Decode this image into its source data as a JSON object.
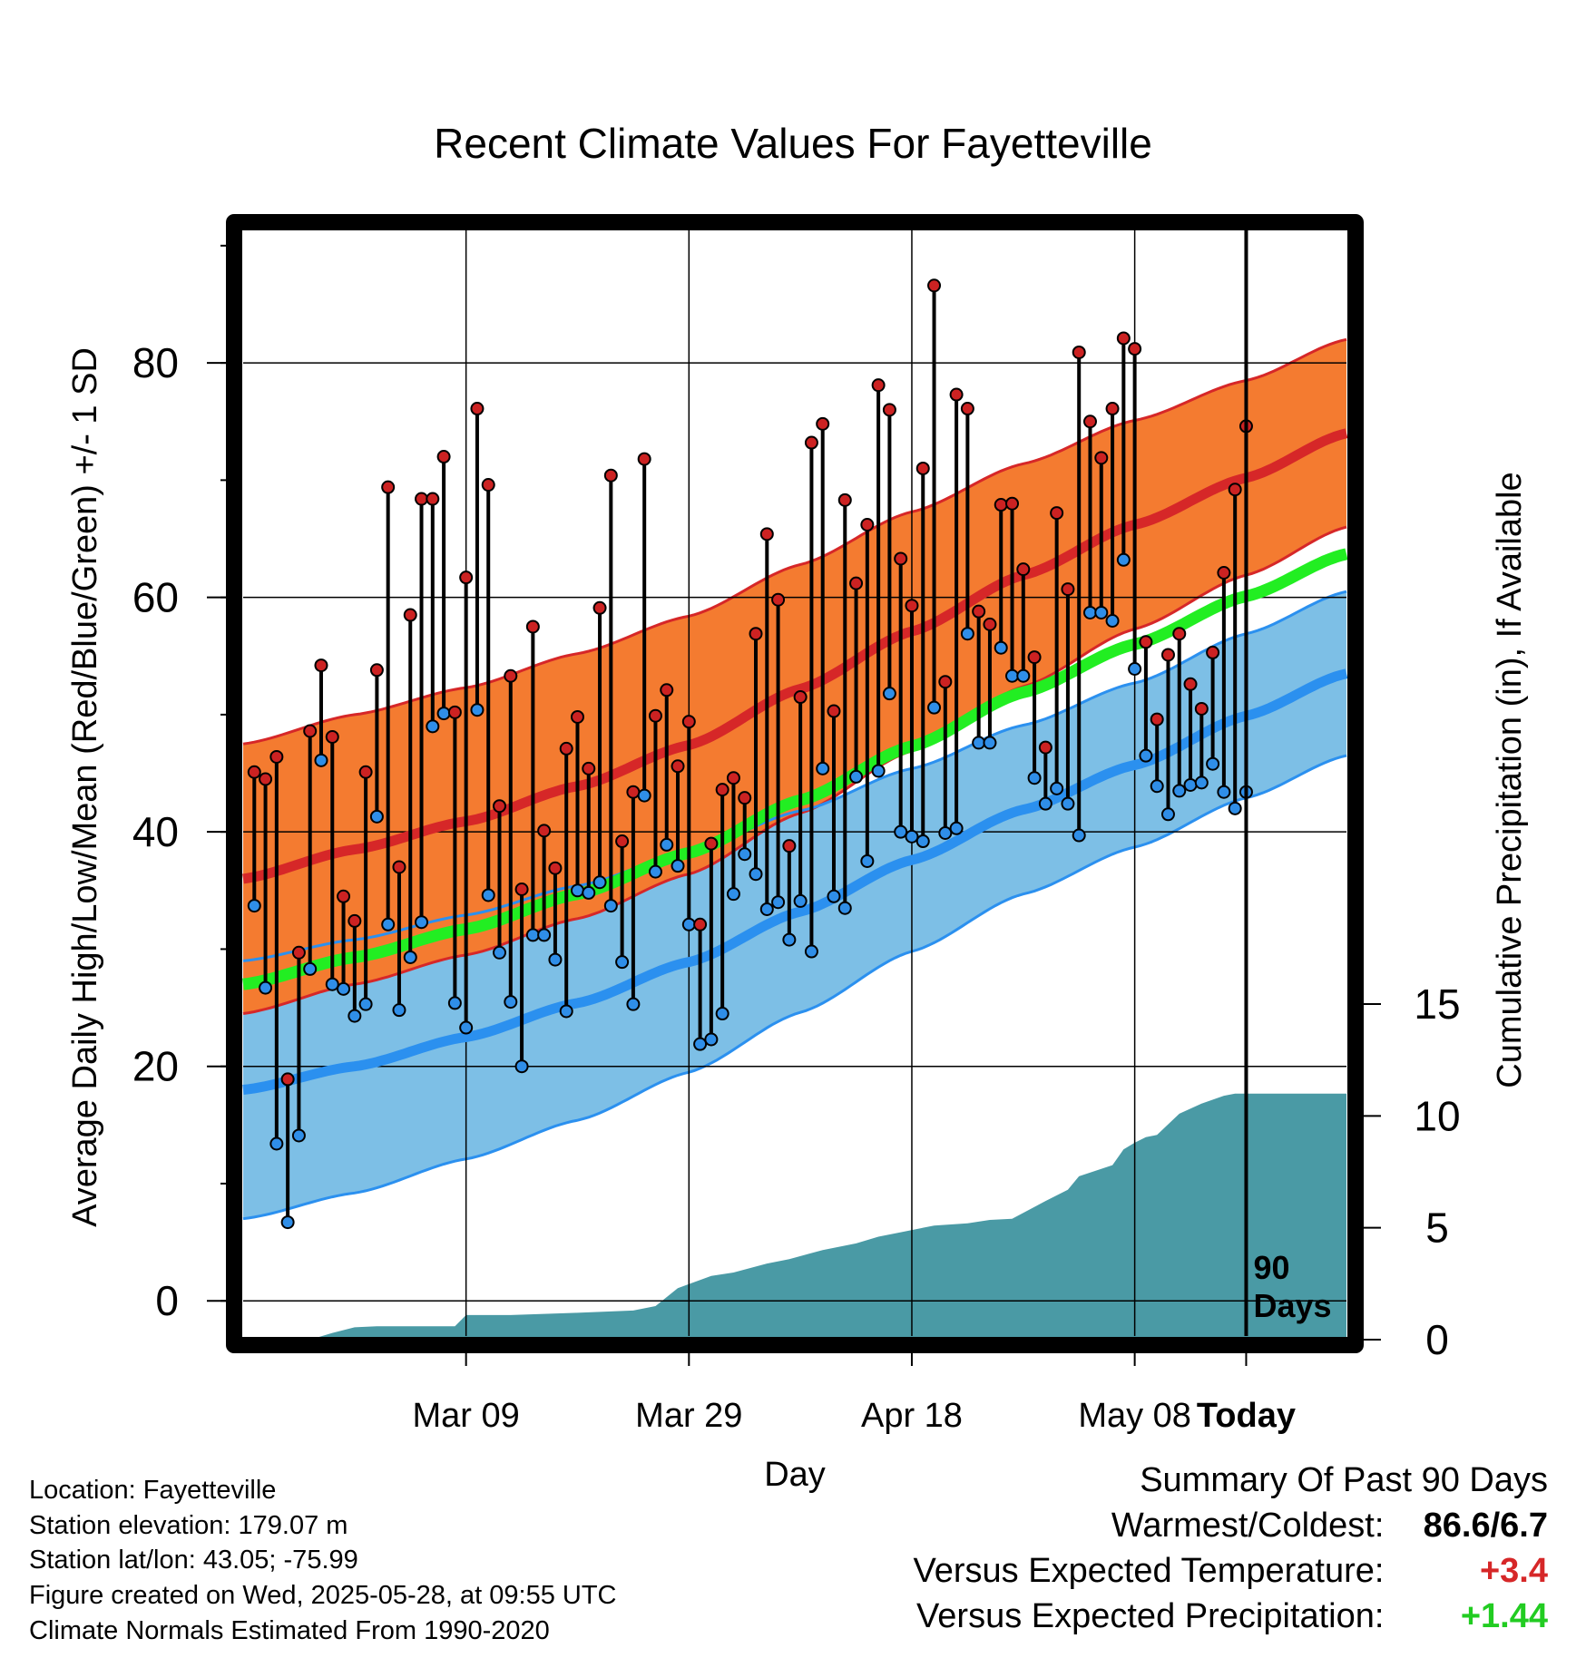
{
  "title": "Recent Climate Values For Fayetteville",
  "footer": {
    "location": "Location: Fayetteville",
    "elevation": "Station elevation: 179.07 m",
    "latlon": "Station lat/lon: 43.05; -75.99",
    "created": "Figure created on Wed, 2025-05-28, at 09:55 UTC",
    "normals": "Climate Normals Estimated From 1990-2020"
  },
  "summary": {
    "heading": "Summary Of Past 90 Days",
    "warm_cold_label": "Warmest/Coldest:",
    "warm_cold_value": "86.6/6.7",
    "temp_label": "Versus Expected Temperature:",
    "temp_value": "+3.4",
    "temp_color": "#d62728",
    "precip_label": "Versus Expected Precipitation:",
    "precip_value": "+1.44",
    "precip_color": "#22cc22"
  },
  "chart_data": {
    "type": "line",
    "xlabel": "Day",
    "ylabel": "Average Daily High/Low/Mean (Red/Blue/Green) +/- 1 SD",
    "y2label": "Cumulative Precipitation (in), If Available",
    "xlim": [
      -90,
      9
    ],
    "ylim": [
      -3,
      92
    ],
    "y2lim": [
      0,
      15
    ],
    "x_ticks": [
      {
        "x": -70,
        "label": "Mar 09"
      },
      {
        "x": -50,
        "label": "Mar 29"
      },
      {
        "x": -30,
        "label": "Apr 18"
      },
      {
        "x": -10,
        "label": "May 08"
      },
      {
        "x": 0,
        "label": "Today"
      }
    ],
    "y_ticks": [
      0,
      20,
      40,
      60,
      80
    ],
    "y2_ticks": [
      0,
      5,
      10,
      15
    ],
    "grid": true,
    "today_marker": {
      "x": 0,
      "label_line1": "90",
      "label_line2": "Days"
    },
    "colors": {
      "high_band": "#f47b30",
      "high_line": "#d62728",
      "high_edge": "#d62728",
      "low_band": "#7dbfe6",
      "low_line": "#2b90ef",
      "low_edge": "#2b90ef",
      "mean_line": "#22ee22",
      "precip": "#4a9aa5",
      "obs_high_dot": "#cc2222",
      "obs_low_dot": "#2f8ee8"
    },
    "normals": {
      "x": [
        -90,
        -80,
        -70,
        -60,
        -50,
        -40,
        -30,
        -20,
        -10,
        0,
        9
      ],
      "high_mean": [
        36.0,
        38.5,
        40.9,
        43.9,
        47.4,
        52.2,
        57.1,
        61.9,
        66.2,
        70.2,
        74.0
      ],
      "high_sd": [
        11.5,
        11.5,
        11.4,
        11.3,
        11.0,
        10.6,
        10.2,
        9.5,
        8.9,
        8.3,
        8.0
      ],
      "low_mean": [
        18.0,
        20.0,
        22.5,
        25.4,
        28.9,
        33.2,
        37.6,
        41.9,
        45.7,
        49.9,
        53.5
      ],
      "low_sd": [
        11.0,
        10.8,
        10.4,
        10.0,
        9.4,
        8.6,
        7.8,
        7.2,
        7.0,
        7.0,
        7.0
      ],
      "mean": [
        27.0,
        29.3,
        31.7,
        34.7,
        38.2,
        42.7,
        47.3,
        51.9,
        56.0,
        60.1,
        63.7
      ]
    },
    "observed": {
      "days": [
        -89,
        -88,
        -87,
        -86,
        -85,
        -84,
        -83,
        -82,
        -81,
        -80,
        -79,
        -78,
        -77,
        -76,
        -75,
        -74,
        -73,
        -72,
        -71,
        -70,
        -69,
        -68,
        -67,
        -66,
        -65,
        -64,
        -63,
        -62,
        -61,
        -60,
        -59,
        -58,
        -57,
        -56,
        -55,
        -54,
        -53,
        -52,
        -51,
        -50,
        -49,
        -48,
        -47,
        -46,
        -45,
        -44,
        -43,
        -42,
        -41,
        -40,
        -39,
        -38,
        -37,
        -36,
        -35,
        -34,
        -33,
        -32,
        -31,
        -30,
        -29,
        -28,
        -27,
        -26,
        -25,
        -24,
        -23,
        -22,
        -21,
        -20,
        -19,
        -18,
        -17,
        -16,
        -15,
        -14,
        -13,
        -12,
        -11,
        -10,
        -9,
        -8,
        -7,
        -6,
        -5,
        -4,
        -3,
        -2,
        -1,
        0
      ],
      "highs": [
        45.1,
        44.5,
        46.4,
        18.9,
        29.7,
        48.6,
        54.2,
        48.1,
        34.5,
        32.4,
        45.1,
        53.8,
        69.4,
        37.0,
        58.5,
        68.4,
        68.4,
        72.0,
        50.2,
        61.7,
        76.1,
        69.6,
        42.2,
        53.3,
        35.1,
        57.5,
        40.1,
        36.9,
        47.1,
        49.8,
        45.4,
        59.1,
        70.4,
        39.2,
        43.4,
        71.8,
        49.9,
        52.1,
        45.6,
        49.4,
        32.1,
        39.0,
        43.6,
        44.6,
        42.9,
        56.9,
        65.4,
        59.8,
        38.8,
        51.5,
        73.2,
        74.8,
        50.3,
        68.3,
        61.2,
        66.2,
        78.1,
        76.0,
        63.3,
        59.3,
        71.0,
        86.6,
        52.8,
        77.3,
        76.1,
        58.8,
        57.7,
        67.9,
        68.0,
        62.4,
        54.9,
        47.2,
        67.2,
        60.7,
        80.9,
        75.0,
        71.9,
        76.1,
        82.1,
        81.2,
        56.2,
        49.6,
        55.1,
        56.9,
        52.6,
        50.5,
        55.3,
        62.1,
        69.2,
        74.6
      ],
      "lows": [
        33.7,
        26.7,
        13.4,
        6.7,
        14.1,
        28.3,
        46.1,
        27.0,
        26.6,
        24.3,
        25.3,
        41.3,
        32.1,
        24.8,
        29.3,
        32.3,
        49.0,
        50.1,
        25.4,
        23.3,
        50.4,
        34.6,
        29.7,
        25.5,
        20.0,
        31.2,
        31.2,
        29.1,
        24.7,
        35.0,
        34.8,
        35.7,
        33.7,
        28.9,
        25.3,
        43.1,
        36.6,
        38.9,
        37.1,
        32.1,
        21.9,
        22.3,
        24.5,
        34.7,
        38.1,
        36.4,
        33.4,
        34.0,
        30.8,
        34.1,
        29.8,
        45.4,
        34.5,
        33.5,
        44.7,
        37.5,
        45.2,
        51.8,
        40.0,
        39.6,
        39.2,
        50.6,
        39.9,
        40.3,
        56.9,
        47.6,
        47.6,
        55.7,
        53.3,
        53.3,
        44.6,
        42.4,
        43.7,
        42.4,
        39.7,
        58.7,
        58.7,
        58.0,
        63.2,
        53.9,
        46.5,
        43.9,
        41.5,
        43.5,
        44.0,
        44.2,
        45.8,
        43.4,
        42.0,
        43.4
      ]
    },
    "precip_cum": {
      "x": [
        -90,
        -84,
        -82,
        -80,
        -78,
        -76,
        -73,
        -71,
        -70,
        -66,
        -60,
        -55,
        -53,
        -51,
        -48,
        -46,
        -43,
        -41,
        -38,
        -35,
        -33,
        -31,
        -28,
        -25,
        -23,
        -21,
        -18,
        -16,
        -15,
        -12,
        -11,
        -10,
        -9,
        -8,
        -6,
        -4,
        -2,
        -1,
        0,
        1,
        3,
        5,
        6,
        8,
        9
      ],
      "values": [
        0.0,
        0.0,
        0.3,
        0.55,
        0.6,
        0.6,
        0.6,
        0.6,
        1.1,
        1.1,
        1.2,
        1.3,
        1.5,
        2.3,
        2.85,
        3.0,
        3.4,
        3.6,
        4.0,
        4.3,
        4.6,
        4.8,
        5.1,
        5.2,
        5.35,
        5.4,
        6.2,
        6.7,
        7.3,
        7.8,
        8.5,
        8.8,
        9.05,
        9.15,
        10.1,
        10.55,
        10.9,
        11.0,
        11.0,
        11.0,
        11.0,
        11.0,
        11.0,
        11.0,
        11.0
      ]
    }
  }
}
